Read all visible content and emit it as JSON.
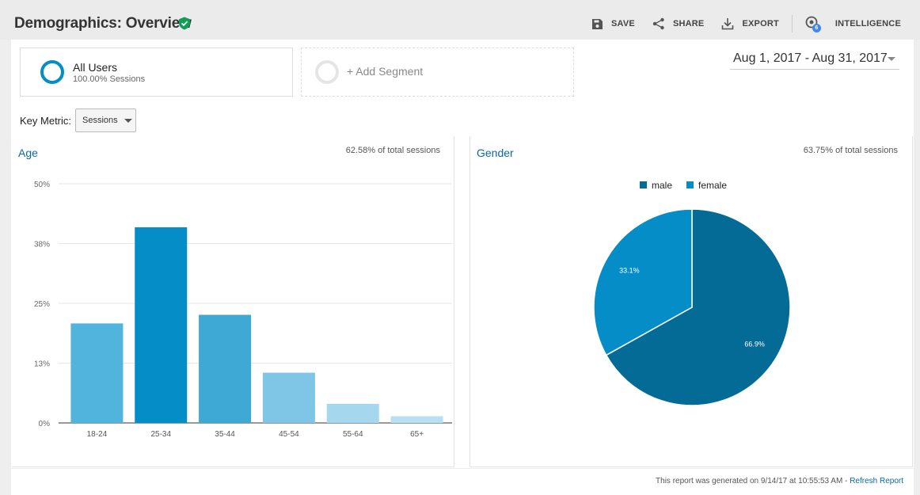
{
  "header": {
    "title": "Demographics: Overview",
    "toolbar": {
      "save": "SAVE",
      "share": "SHARE",
      "export": "EXPORT",
      "intelligence": "INTELLIGENCE",
      "intelligence_badge": "6"
    }
  },
  "segments": {
    "all_users": {
      "name": "All Users",
      "detail": "100.00% Sessions"
    },
    "add_segment": "+ Add Segment"
  },
  "date_range": "Aug 1, 2017 - Aug 31, 2017",
  "key_metric": {
    "label": "Key Metric:",
    "selected": "Sessions"
  },
  "age_panel": {
    "title": "Age",
    "share": "62.58% of total sessions"
  },
  "gender_panel": {
    "title": "Gender",
    "share": "63.75% of total sessions"
  },
  "footer": {
    "generated": "This report was generated on 9/14/17 at 10:55:53 AM - ",
    "refresh": "Refresh Report"
  },
  "colors": {
    "accent": "#058dc7",
    "link": "#0b67a6",
    "verified": "#0f9d58"
  },
  "chart_data": [
    {
      "type": "bar",
      "categories": [
        "18-24",
        "25-34",
        "35-44",
        "45-54",
        "55-64",
        "65+"
      ],
      "values": [
        20.8,
        40.9,
        22.6,
        10.5,
        4.0,
        1.4
      ],
      "value_unit": "%",
      "y_ticks": [
        "0%",
        "13%",
        "25%",
        "38%",
        "50%"
      ],
      "ylim": [
        0,
        50
      ],
      "bar_colors": [
        "#50b4dc",
        "#058dc7",
        "#3fa9d6",
        "#7fc6e6",
        "#a5d8ef",
        "#b7e0f2"
      ],
      "grid": true
    },
    {
      "type": "pie",
      "legend": [
        "male",
        "female"
      ],
      "legend_position": "top",
      "values": [
        66.9,
        33.1
      ],
      "labels": [
        "66.9%",
        "33.1%"
      ],
      "colors": [
        "#046b96",
        "#058dc7"
      ]
    }
  ]
}
